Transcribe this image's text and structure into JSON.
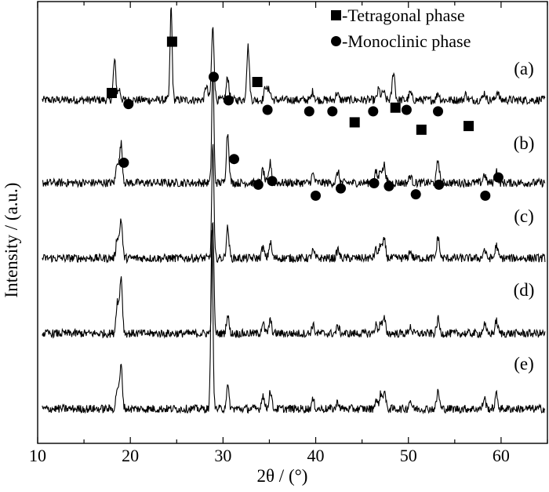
{
  "chart_data": {
    "type": "line",
    "xlabel": "2θ / (°)",
    "ylabel": "Intensity / (a.u.)",
    "xlim": [
      10,
      65
    ],
    "x_ticks": [
      10,
      20,
      30,
      40,
      50,
      60
    ],
    "legend": {
      "position": "top-right",
      "entries": [
        {
          "marker": "square",
          "label": "-Tetragonal phase"
        },
        {
          "marker": "circle",
          "label": "-Monoclinic phase"
        }
      ]
    },
    "series": [
      {
        "name": "(a)",
        "offset": 4,
        "peaks": [
          [
            18.3,
            0.55
          ],
          [
            18.8,
            0.15
          ],
          [
            24.4,
            1.3
          ],
          [
            28.2,
            0.2
          ],
          [
            28.9,
            1.0
          ],
          [
            30.5,
            0.32
          ],
          [
            32.7,
            0.75
          ],
          [
            34.6,
            0.2
          ],
          [
            35.0,
            0.15
          ],
          [
            39.7,
            0.12
          ],
          [
            42.3,
            0.1
          ],
          [
            46.8,
            0.15
          ],
          [
            47.3,
            0.12
          ],
          [
            48.4,
            0.4
          ],
          [
            50.2,
            0.1
          ],
          [
            53.2,
            0.1
          ],
          [
            56.2,
            0.08
          ],
          [
            58.2,
            0.1
          ],
          [
            59.6,
            0.12
          ]
        ]
      },
      {
        "name": "(b)",
        "offset": 3,
        "peaks": [
          [
            18.6,
            0.3
          ],
          [
            19.0,
            0.55
          ],
          [
            28.9,
            1.6
          ],
          [
            30.5,
            0.7
          ],
          [
            34.3,
            0.18
          ],
          [
            35.1,
            0.28
          ],
          [
            39.7,
            0.12
          ],
          [
            42.4,
            0.15
          ],
          [
            46.5,
            0.15
          ],
          [
            47.0,
            0.2
          ],
          [
            47.4,
            0.25
          ],
          [
            50.2,
            0.1
          ],
          [
            53.2,
            0.32
          ],
          [
            58.2,
            0.12
          ],
          [
            59.5,
            0.18
          ]
        ]
      },
      {
        "name": "(c)",
        "offset": 2,
        "peaks": [
          [
            18.6,
            0.3
          ],
          [
            19.0,
            0.55
          ],
          [
            28.9,
            1.6
          ],
          [
            30.5,
            0.42
          ],
          [
            34.3,
            0.15
          ],
          [
            35.1,
            0.22
          ],
          [
            39.7,
            0.1
          ],
          [
            42.4,
            0.12
          ],
          [
            46.5,
            0.12
          ],
          [
            47.0,
            0.2
          ],
          [
            47.4,
            0.25
          ],
          [
            50.2,
            0.1
          ],
          [
            53.2,
            0.3
          ],
          [
            58.2,
            0.12
          ],
          [
            59.5,
            0.18
          ]
        ]
      },
      {
        "name": "(d)",
        "offset": 1,
        "peaks": [
          [
            18.6,
            0.45
          ],
          [
            19.0,
            0.8
          ],
          [
            28.9,
            1.6
          ],
          [
            30.5,
            0.25
          ],
          [
            34.3,
            0.15
          ],
          [
            35.1,
            0.18
          ],
          [
            39.7,
            0.12
          ],
          [
            42.4,
            0.1
          ],
          [
            46.5,
            0.12
          ],
          [
            47.0,
            0.15
          ],
          [
            47.4,
            0.2
          ],
          [
            50.2,
            0.1
          ],
          [
            53.2,
            0.2
          ],
          [
            58.2,
            0.12
          ],
          [
            59.5,
            0.18
          ]
        ]
      },
      {
        "name": "(e)",
        "offset": 0,
        "peaks": [
          [
            18.6,
            0.3
          ],
          [
            19.0,
            0.6
          ],
          [
            28.8,
            2.5
          ],
          [
            30.5,
            0.3
          ],
          [
            34.3,
            0.2
          ],
          [
            35.1,
            0.25
          ],
          [
            39.7,
            0.12
          ],
          [
            42.4,
            0.1
          ],
          [
            46.5,
            0.12
          ],
          [
            47.0,
            0.2
          ],
          [
            47.4,
            0.25
          ],
          [
            50.2,
            0.12
          ],
          [
            53.2,
            0.25
          ],
          [
            58.2,
            0.15
          ],
          [
            59.5,
            0.2
          ]
        ]
      }
    ],
    "markers": {
      "a": {
        "tetragonal": [
          [
            18.0,
            4.85
          ],
          [
            24.5,
            5.55
          ],
          [
            33.7,
            5.0
          ],
          [
            44.2,
            4.45
          ],
          [
            48.6,
            4.65
          ],
          [
            51.4,
            4.35
          ],
          [
            56.5,
            4.4
          ]
        ],
        "monoclinic": [
          [
            19.8,
            4.7
          ],
          [
            29.0,
            5.07
          ],
          [
            30.6,
            4.75
          ],
          [
            34.8,
            4.62
          ],
          [
            39.3,
            4.6
          ],
          [
            41.8,
            4.6
          ],
          [
            46.2,
            4.6
          ],
          [
            49.8,
            4.62
          ],
          [
            53.2,
            4.6
          ]
        ]
      },
      "b": {
        "monoclinic": [
          [
            19.3,
            3.9
          ],
          [
            31.2,
            3.95
          ],
          [
            33.8,
            3.6
          ],
          [
            35.3,
            3.65
          ],
          [
            40.0,
            3.45
          ],
          [
            42.7,
            3.55
          ],
          [
            46.3,
            3.62
          ],
          [
            47.9,
            3.58
          ],
          [
            50.8,
            3.47
          ],
          [
            53.3,
            3.6
          ],
          [
            58.3,
            3.45
          ],
          [
            59.7,
            3.7
          ]
        ]
      }
    }
  }
}
